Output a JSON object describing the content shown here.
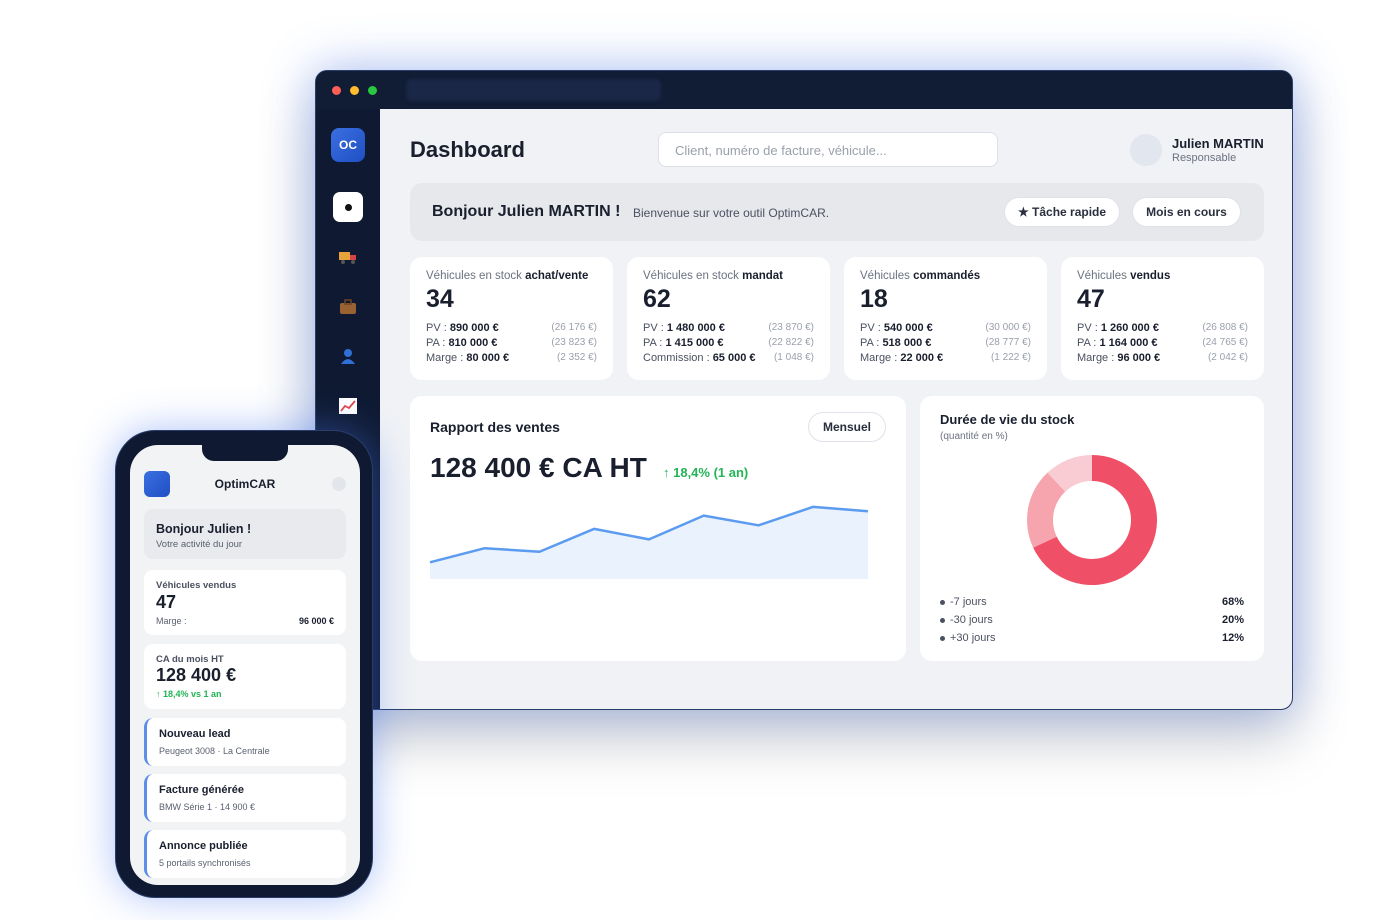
{
  "header": {
    "title": "Dashboard",
    "search_placeholder": "Client, numéro de facture, véhicule...",
    "user_name": "Julien MARTIN",
    "user_role": "Responsable"
  },
  "sidebar": {
    "logo": "OC"
  },
  "welcome": {
    "greeting": "Bonjour Julien MARTIN !",
    "subtitle": "Bienvenue sur votre outil OptimCAR.",
    "buttons": [
      "★ Tâche rapide",
      "Mois en cours"
    ]
  },
  "kpis": [
    {
      "label_prefix": "Véhicules en stock",
      "label_bold": "achat/vente",
      "value": 34,
      "rows": [
        {
          "label": "PV :",
          "value": "890 000 €",
          "note": "(26 176 €)"
        },
        {
          "label": "PA :",
          "value": "810 000 €",
          "note": "(23 823 €)"
        },
        {
          "label": "Marge :",
          "value": "80 000 €",
          "note": "(2 352 €)"
        }
      ]
    },
    {
      "label_prefix": "Véhicules en stock",
      "label_bold": "mandat",
      "value": 62,
      "rows": [
        {
          "label": "PV :",
          "value": "1 480 000 €",
          "note": "(23 870 €)"
        },
        {
          "label": "PA :",
          "value": "1 415 000 €",
          "note": "(22 822 €)"
        },
        {
          "label": "Commission :",
          "value": "65 000 €",
          "note": "(1 048 €)"
        }
      ]
    },
    {
      "label_prefix": "Véhicules",
      "label_bold": "commandés",
      "value": 18,
      "rows": [
        {
          "label": "PV :",
          "value": "540 000 €",
          "note": "(30 000 €)"
        },
        {
          "label": "PA :",
          "value": "518 000 €",
          "note": "(28 777 €)"
        },
        {
          "label": "Marge :",
          "value": "22 000 €",
          "note": "(1 222 €)"
        }
      ]
    },
    {
      "label_prefix": "Véhicules",
      "label_bold": "vendus",
      "value": 47,
      "rows": [
        {
          "label": "PV :",
          "value": "1 260 000 €",
          "note": "(26 808 €)"
        },
        {
          "label": "PA :",
          "value": "1 164 000 €",
          "note": "(24 765 €)"
        },
        {
          "label": "Marge :",
          "value": "96 000 €",
          "note": "(2 042 €)"
        }
      ]
    }
  ],
  "sales_report": {
    "title": "Rapport des ventes",
    "period_button": "Mensuel",
    "headline": "128 400 € CA HT",
    "growth": "↑ 18,4% (1 an)"
  },
  "chart_data": [
    {
      "type": "area",
      "values": [
        19,
        35,
        31,
        57,
        45,
        72,
        61,
        82,
        77
      ],
      "ylim": [
        0,
        100
      ],
      "color": "#5b9bf0"
    },
    {
      "type": "donut",
      "title": "Durée de vie du stock",
      "subtitle": "(quantité en %)",
      "categories": [
        "-7 jours",
        "-30 jours",
        "+30 jours"
      ],
      "values": [
        68,
        20,
        12
      ],
      "value_labels": [
        "68%",
        "20%",
        "12%"
      ],
      "colors": [
        "#ef5068",
        "#f6a5ae",
        "#f8ccd2"
      ]
    }
  ],
  "phone": {
    "app_name": "OptimCAR",
    "greeting": "Bonjour Julien !",
    "subtitle": "Votre activité du jour",
    "sold": {
      "label": "Véhicules vendus",
      "value": 47,
      "detail_label": "Marge :",
      "detail_value": "96 000 €"
    },
    "revenue": {
      "label": "CA du mois HT",
      "value": "128 400 €",
      "growth": "↑ 18,4% vs 1 an"
    },
    "activities": [
      {
        "title": "Nouveau lead",
        "detail": "Peugeot 3008 · La Centrale"
      },
      {
        "title": "Facture générée",
        "detail": "BMW Série 1 · 14 900 €"
      },
      {
        "title": "Annonce publiée",
        "detail": "5 portails synchronisés"
      }
    ]
  }
}
